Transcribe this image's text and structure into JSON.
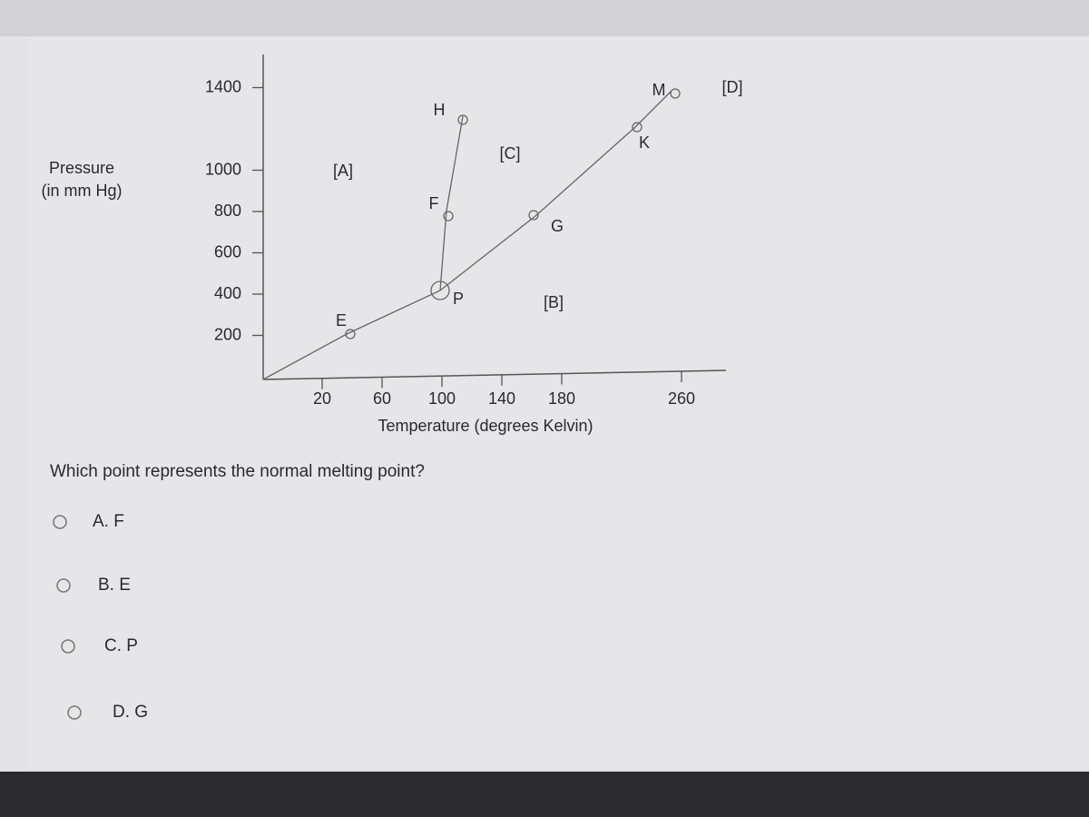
{
  "diagram": {
    "y_axis_label": [
      "Pressure",
      "(in mm Hg)"
    ],
    "x_axis_label": "Temperature (degrees Kelvin)",
    "yticks": [
      1400,
      1000,
      800,
      600,
      400,
      200
    ],
    "xticks": [
      20,
      60,
      100,
      140,
      180,
      260
    ],
    "points": [
      "H",
      "F",
      "P",
      "E",
      "G",
      "K",
      "M"
    ],
    "regions": [
      "[A]",
      "[B]",
      "[C]",
      "[D]"
    ]
  },
  "question": "Which point represents the normal melting point?",
  "options": [
    "A. F",
    "B. E",
    "C. P",
    "D. G"
  ]
}
